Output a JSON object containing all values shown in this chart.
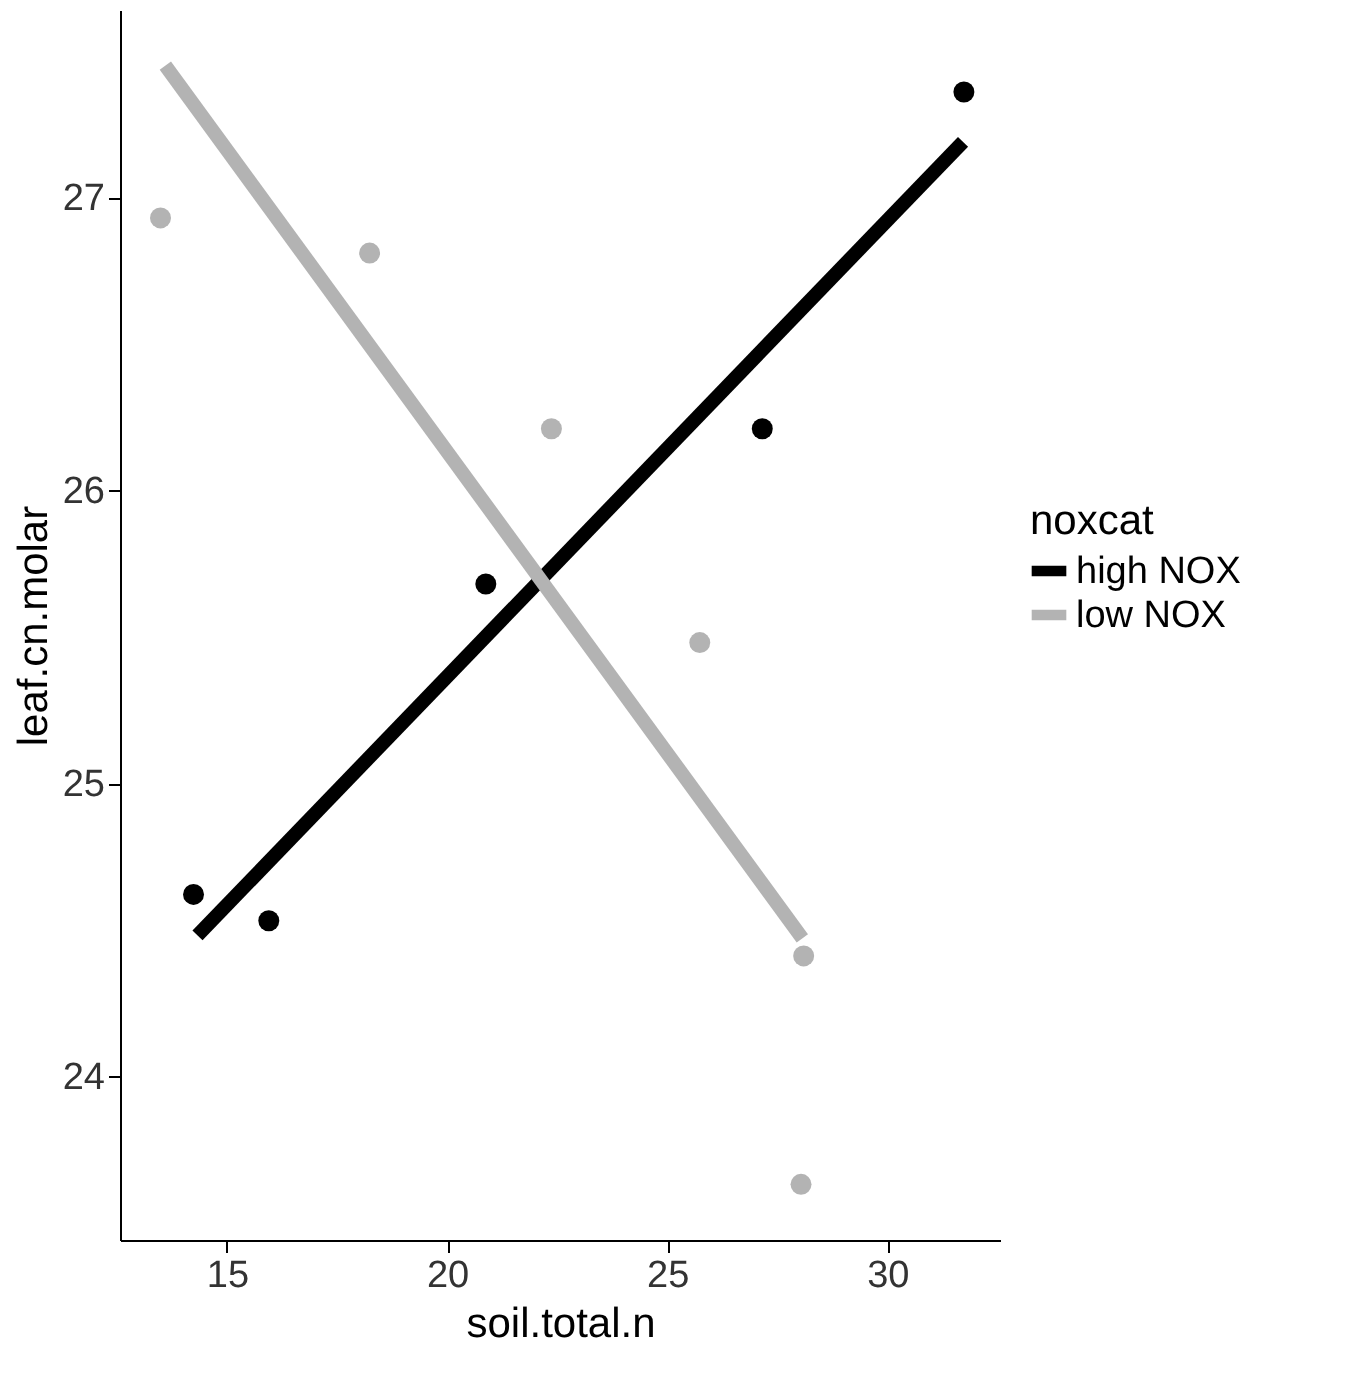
{
  "chart_data": {
    "type": "scatter",
    "xlabel": "soil.total.n",
    "ylabel": "leaf.cn.molar",
    "legend_title": "noxcat",
    "legend": "right",
    "grid": false,
    "xlim": [
      12.57,
      32.56
    ],
    "xticks": [
      15,
      20,
      25,
      30
    ],
    "ylim": [
      23.44,
      27.64
    ],
    "yticks": [
      24,
      25,
      26,
      27
    ],
    "series": [
      {
        "name": "high NOX",
        "color": "#000000",
        "marker": "circle",
        "x": [
          14.24,
          15.95,
          20.88,
          27.16,
          31.74
        ],
        "values": [
          24.62,
          24.53,
          25.68,
          26.21,
          27.36
        ]
      },
      {
        "name": "low NOX",
        "color": "#b3b3b3",
        "marker": "circle",
        "x": [
          13.49,
          18.24,
          22.37,
          25.74,
          28.1,
          28.04
        ],
        "values": [
          26.93,
          26.81,
          26.21,
          25.48,
          24.41,
          23.63
        ]
      },
      {
        "type": "line",
        "color": "#000000",
        "marker": "none",
        "x": [
          14.33,
          31.72
        ],
        "values": [
          24.48,
          27.19
        ]
      },
      {
        "type": "line",
        "color": "#b3b3b3",
        "marker": "none",
        "x": [
          13.6,
          28.07
        ],
        "values": [
          27.45,
          24.47
        ]
      }
    ]
  }
}
